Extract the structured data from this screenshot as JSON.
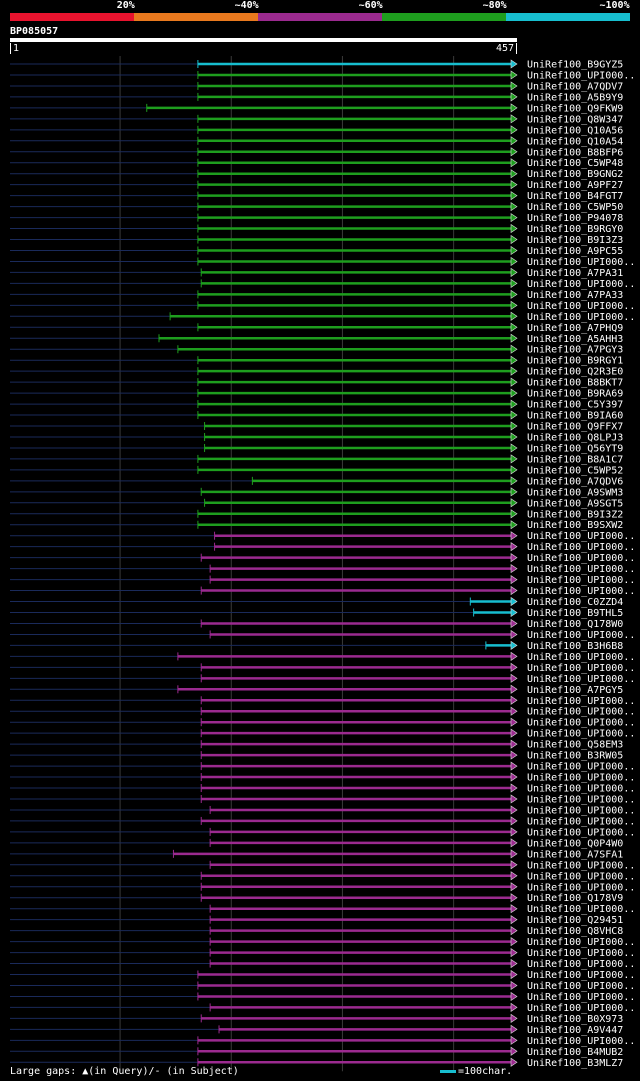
{
  "legend": {
    "labels": [
      "20%",
      "~40%",
      "~60%",
      "~80%",
      "~100%"
    ],
    "colors": [
      "#e8132e",
      "#e8791e",
      "#9b2a8f",
      "#1e9e1e",
      "#17becf"
    ]
  },
  "query": {
    "id": "BP085057",
    "start": "1",
    "end": "457",
    "length": 457
  },
  "footer": {
    "text": "Large gaps: ▲(in Query)/- (in Subject)",
    "scale_label": "=100char."
  },
  "chart_data": {
    "type": "alignment",
    "query_length": 457,
    "hits": [
      {
        "name": "UniRef100_B9GYZ5",
        "start": 170,
        "end": 457,
        "class": "~100%"
      },
      {
        "name": "UniRef100_UPI000..",
        "start": 170,
        "end": 457,
        "class": "~80%"
      },
      {
        "name": "UniRef100_A7QDV7",
        "start": 170,
        "end": 457,
        "class": "~80%"
      },
      {
        "name": "UniRef100_A5B9Y9",
        "start": 170,
        "end": 457,
        "class": "~80%"
      },
      {
        "name": "UniRef100_Q9FKW9",
        "start": 124,
        "end": 457,
        "class": "~80%"
      },
      {
        "name": "UniRef100_Q8W347",
        "start": 170,
        "end": 457,
        "class": "~80%"
      },
      {
        "name": "UniRef100_Q10A56",
        "start": 170,
        "end": 457,
        "class": "~80%"
      },
      {
        "name": "UniRef100_Q10A54",
        "start": 170,
        "end": 457,
        "class": "~80%"
      },
      {
        "name": "UniRef100_B8BFP6",
        "start": 170,
        "end": 457,
        "class": "~80%"
      },
      {
        "name": "UniRef100_C5WP48",
        "start": 170,
        "end": 457,
        "class": "~80%"
      },
      {
        "name": "UniRef100_B9GNG2",
        "start": 170,
        "end": 457,
        "class": "~80%"
      },
      {
        "name": "UniRef100_A9PF27",
        "start": 170,
        "end": 457,
        "class": "~80%"
      },
      {
        "name": "UniRef100_B4FGT7",
        "start": 170,
        "end": 457,
        "class": "~80%"
      },
      {
        "name": "UniRef100_C5WP50",
        "start": 170,
        "end": 457,
        "class": "~80%"
      },
      {
        "name": "UniRef100_P94078",
        "start": 170,
        "end": 457,
        "class": "~80%"
      },
      {
        "name": "UniRef100_B9RGY0",
        "start": 170,
        "end": 457,
        "class": "~80%"
      },
      {
        "name": "UniRef100_B9I3Z3",
        "start": 170,
        "end": 457,
        "class": "~80%"
      },
      {
        "name": "UniRef100_A9PC55",
        "start": 170,
        "end": 457,
        "class": "~80%"
      },
      {
        "name": "UniRef100_UPI000..",
        "start": 170,
        "end": 457,
        "class": "~80%"
      },
      {
        "name": "UniRef100_A7PA31",
        "start": 173,
        "end": 457,
        "class": "~80%"
      },
      {
        "name": "UniRef100_UPI000..",
        "start": 173,
        "end": 457,
        "class": "~80%"
      },
      {
        "name": "UniRef100_A7PA33",
        "start": 170,
        "end": 457,
        "class": "~80%"
      },
      {
        "name": "UniRef100_UPI000..",
        "start": 170,
        "end": 457,
        "class": "~80%"
      },
      {
        "name": "UniRef100_UPI000..",
        "start": 145,
        "end": 457,
        "class": "~80%"
      },
      {
        "name": "UniRef100_A7PHQ9",
        "start": 170,
        "end": 457,
        "class": "~80%"
      },
      {
        "name": "UniRef100_A5AHH3",
        "start": 135,
        "end": 457,
        "class": "~80%"
      },
      {
        "name": "UniRef100_A7PGY3",
        "start": 152,
        "end": 457,
        "class": "~80%"
      },
      {
        "name": "UniRef100_B9RGY1",
        "start": 170,
        "end": 457,
        "class": "~80%"
      },
      {
        "name": "UniRef100_Q2R3E0",
        "start": 170,
        "end": 457,
        "class": "~80%"
      },
      {
        "name": "UniRef100_B8BKT7",
        "start": 170,
        "end": 457,
        "class": "~80%"
      },
      {
        "name": "UniRef100_B9RA69",
        "start": 170,
        "end": 457,
        "class": "~80%"
      },
      {
        "name": "UniRef100_C5Y397",
        "start": 170,
        "end": 457,
        "class": "~80%"
      },
      {
        "name": "UniRef100_B9IA60",
        "start": 170,
        "end": 457,
        "class": "~80%"
      },
      {
        "name": "UniRef100_Q9FFX7",
        "start": 176,
        "end": 457,
        "class": "~80%"
      },
      {
        "name": "UniRef100_Q8LPJ3",
        "start": 176,
        "end": 457,
        "class": "~80%"
      },
      {
        "name": "UniRef100_Q56YT9",
        "start": 176,
        "end": 457,
        "class": "~80%"
      },
      {
        "name": "UniRef100_B8A1C7",
        "start": 170,
        "end": 457,
        "class": "~80%"
      },
      {
        "name": "UniRef100_C5WP52",
        "start": 170,
        "end": 457,
        "class": "~80%"
      },
      {
        "name": "UniRef100_A7QDV6",
        "start": 219,
        "end": 457,
        "class": "~80%"
      },
      {
        "name": "UniRef100_A9SWM3",
        "start": 173,
        "end": 457,
        "class": "~80%"
      },
      {
        "name": "UniRef100_A9SGT5",
        "start": 176,
        "end": 457,
        "class": "~80%"
      },
      {
        "name": "UniRef100_B9I3Z2",
        "start": 170,
        "end": 457,
        "class": "~80%"
      },
      {
        "name": "UniRef100_B9SXW2",
        "start": 170,
        "end": 457,
        "class": "~80%"
      },
      {
        "name": "UniRef100_UPI000..",
        "start": 185,
        "end": 457,
        "class": "~60%"
      },
      {
        "name": "UniRef100_UPI000..",
        "start": 185,
        "end": 457,
        "class": "~60%"
      },
      {
        "name": "UniRef100_UPI000..",
        "start": 173,
        "end": 457,
        "class": "~60%"
      },
      {
        "name": "UniRef100_UPI000..",
        "start": 181,
        "end": 457,
        "class": "~60%"
      },
      {
        "name": "UniRef100_UPI000..",
        "start": 181,
        "end": 457,
        "class": "~60%"
      },
      {
        "name": "UniRef100_UPI000..",
        "start": 173,
        "end": 457,
        "class": "~60%"
      },
      {
        "name": "UniRef100_C0ZZD4",
        "start": 415,
        "end": 457,
        "class": "~100%"
      },
      {
        "name": "UniRef100_B9THL5",
        "start": 418,
        "end": 457,
        "class": "~100%"
      },
      {
        "name": "UniRef100_Q178W0",
        "start": 173,
        "end": 457,
        "class": "~60%"
      },
      {
        "name": "UniRef100_UPI000..",
        "start": 181,
        "end": 457,
        "class": "~60%"
      },
      {
        "name": "UniRef100_B3H6B8",
        "start": 429,
        "end": 457,
        "class": "~100%"
      },
      {
        "name": "UniRef100_UPI000..",
        "start": 152,
        "end": 457,
        "class": "~60%"
      },
      {
        "name": "UniRef100_UPI000..",
        "start": 173,
        "end": 457,
        "class": "~60%"
      },
      {
        "name": "UniRef100_UPI000..",
        "start": 173,
        "end": 457,
        "class": "~60%"
      },
      {
        "name": "UniRef100_A7PGY5",
        "start": 152,
        "end": 457,
        "class": "~60%"
      },
      {
        "name": "UniRef100_UPI000..",
        "start": 173,
        "end": 457,
        "class": "~60%"
      },
      {
        "name": "UniRef100_UPI000..",
        "start": 173,
        "end": 457,
        "class": "~60%"
      },
      {
        "name": "UniRef100_UPI000..",
        "start": 173,
        "end": 457,
        "class": "~60%"
      },
      {
        "name": "UniRef100_UPI000..",
        "start": 173,
        "end": 457,
        "class": "~60%"
      },
      {
        "name": "UniRef100_Q58EM3",
        "start": 173,
        "end": 457,
        "class": "~60%"
      },
      {
        "name": "UniRef100_B3RW05",
        "start": 173,
        "end": 457,
        "class": "~60%"
      },
      {
        "name": "UniRef100_UPI000..",
        "start": 173,
        "end": 457,
        "class": "~60%"
      },
      {
        "name": "UniRef100_UPI000..",
        "start": 173,
        "end": 457,
        "class": "~60%"
      },
      {
        "name": "UniRef100_UPI000..",
        "start": 173,
        "end": 457,
        "class": "~60%"
      },
      {
        "name": "UniRef100_UPI000..",
        "start": 173,
        "end": 457,
        "class": "~60%"
      },
      {
        "name": "UniRef100_UPI000..",
        "start": 181,
        "end": 457,
        "class": "~60%"
      },
      {
        "name": "UniRef100_UPI000..",
        "start": 173,
        "end": 457,
        "class": "~60%"
      },
      {
        "name": "UniRef100_UPI000..",
        "start": 181,
        "end": 457,
        "class": "~60%"
      },
      {
        "name": "UniRef100_Q0P4W0",
        "start": 181,
        "end": 457,
        "class": "~60%"
      },
      {
        "name": "UniRef100_A7SFA1",
        "start": 148,
        "end": 457,
        "class": "~60%"
      },
      {
        "name": "UniRef100_UPI000..",
        "start": 181,
        "end": 457,
        "class": "~60%"
      },
      {
        "name": "UniRef100_UPI000..",
        "start": 173,
        "end": 457,
        "class": "~60%"
      },
      {
        "name": "UniRef100_UPI000..",
        "start": 173,
        "end": 457,
        "class": "~60%"
      },
      {
        "name": "UniRef100_Q178V9",
        "start": 173,
        "end": 457,
        "class": "~60%"
      },
      {
        "name": "UniRef100_UPI000..",
        "start": 181,
        "end": 457,
        "class": "~60%"
      },
      {
        "name": "UniRef100_Q29451",
        "start": 181,
        "end": 457,
        "class": "~60%"
      },
      {
        "name": "UniRef100_Q8VHC8",
        "start": 181,
        "end": 457,
        "class": "~60%"
      },
      {
        "name": "UniRef100_UPI000..",
        "start": 181,
        "end": 457,
        "class": "~60%"
      },
      {
        "name": "UniRef100_UPI000..",
        "start": 181,
        "end": 457,
        "class": "~60%"
      },
      {
        "name": "UniRef100_UPI000..",
        "start": 181,
        "end": 457,
        "class": "~60%"
      },
      {
        "name": "UniRef100_UPI000..",
        "start": 170,
        "end": 457,
        "class": "~60%"
      },
      {
        "name": "UniRef100_UPI000..",
        "start": 170,
        "end": 457,
        "class": "~60%"
      },
      {
        "name": "UniRef100_UPI000..",
        "start": 170,
        "end": 457,
        "class": "~60%"
      },
      {
        "name": "UniRef100_UPI000..",
        "start": 181,
        "end": 457,
        "class": "~60%"
      },
      {
        "name": "UniRef100_B0X973",
        "start": 173,
        "end": 457,
        "class": "~60%"
      },
      {
        "name": "UniRef100_A9V447",
        "start": 189,
        "end": 457,
        "class": "~60%"
      },
      {
        "name": "UniRef100_UPI000..",
        "start": 170,
        "end": 457,
        "class": "~60%"
      },
      {
        "name": "UniRef100_B4MUB2",
        "start": 170,
        "end": 457,
        "class": "~60%"
      },
      {
        "name": "UniRef100_B3MLZ7",
        "start": 170,
        "end": 457,
        "class": "~60%"
      }
    ]
  }
}
